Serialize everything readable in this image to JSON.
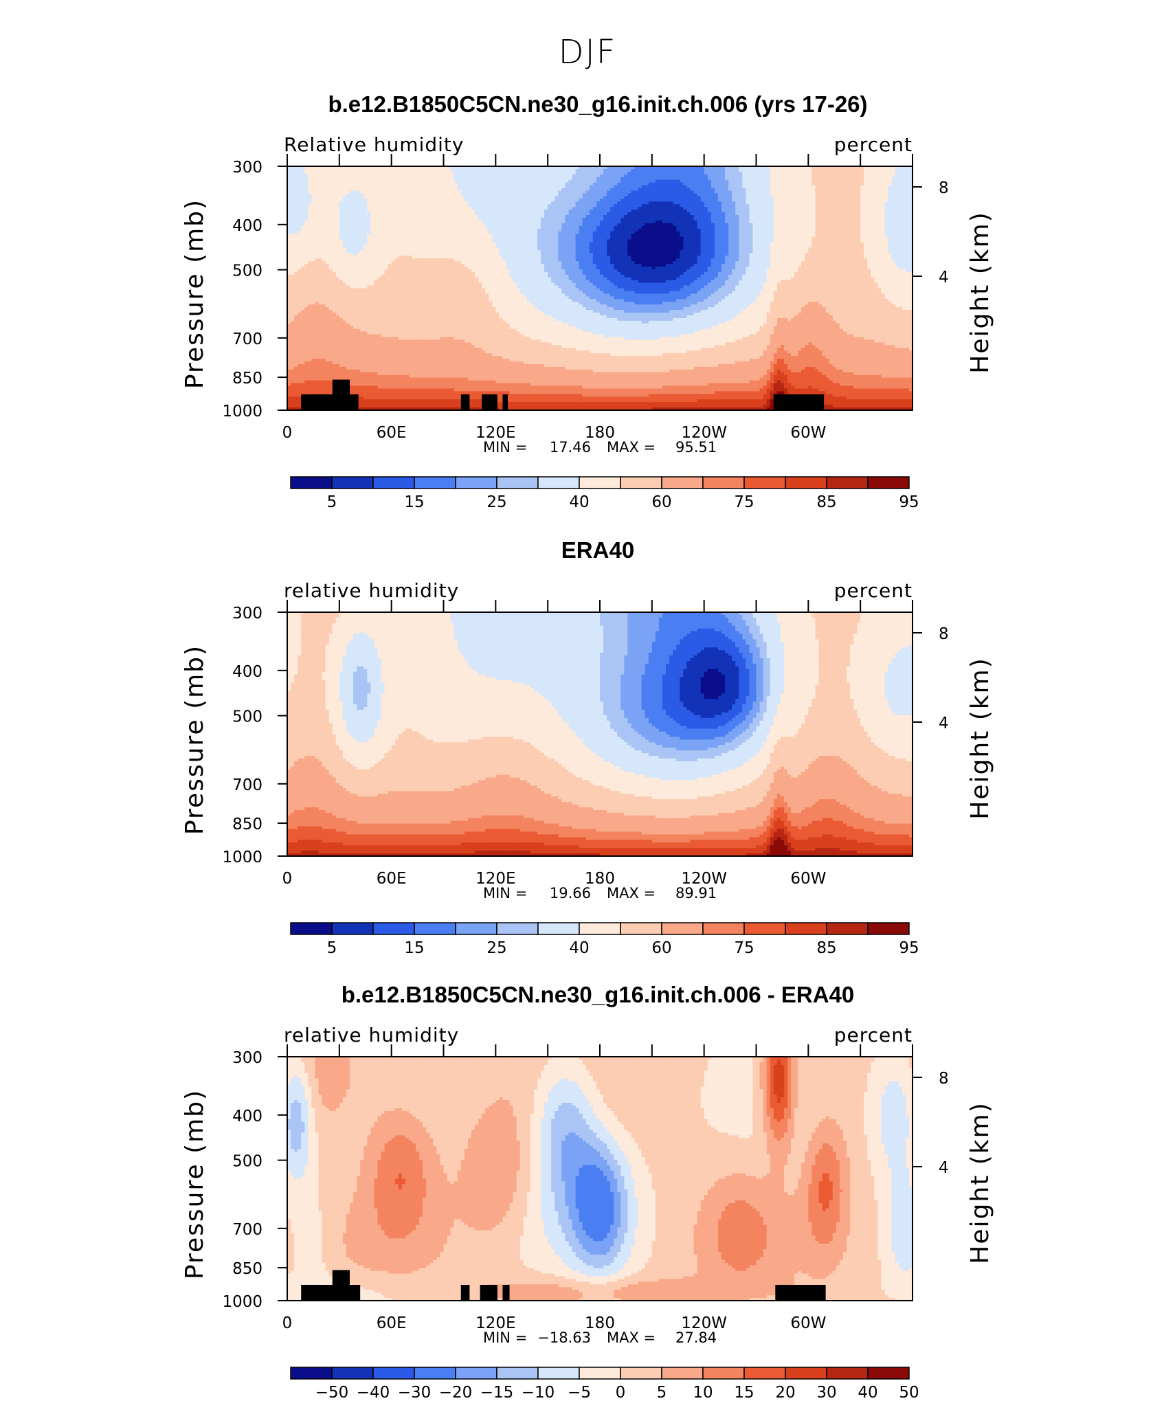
{
  "figure_title": "DJF",
  "chart_data": [
    {
      "type": "heatmap",
      "plot_kind": "filled contour (longitude-pressure cross section)",
      "title": "b.e12.B1850C5CN.ne30_g16.init.ch.006 (yrs 17-26)",
      "left_subtitle": "Relative humidity",
      "right_subtitle": "percent",
      "ylabel": "Pressure (mb)",
      "y2label": "Height (km)",
      "xticks": [
        "0",
        "60E",
        "120E",
        "180",
        "120W",
        "60W"
      ],
      "yticks": [
        "300",
        "400",
        "500",
        "700",
        "850",
        "1000"
      ],
      "y2ticks": [
        "8",
        "4"
      ],
      "stats": {
        "min_label": "MIN =",
        "min": "17.46",
        "max_label": "MAX =",
        "max": "95.51"
      },
      "colorbar_labels": [
        "5",
        "15",
        "25",
        "40",
        "60",
        "75",
        "85",
        "95"
      ],
      "palette": [
        "#0a0e8a",
        "#1233b8",
        "#2a5ae6",
        "#4a7ef2",
        "#7aa2f5",
        "#a9c4f5",
        "#d6e6fb",
        "#fdeadb",
        "#fccdb2",
        "#f9a98a",
        "#f4845f",
        "#ea5b34",
        "#d9401d",
        "#b62612",
        "#8a0a07"
      ],
      "fields": [
        {
          "lon": 5,
          "p": 350,
          "v": -14,
          "r": 14
        },
        {
          "lon": 38,
          "p": 400,
          "v": -18,
          "r": 16
        },
        {
          "lon": 205,
          "p": 450,
          "v": -24,
          "r": 60
        },
        {
          "lon": 205,
          "p": 620,
          "v": -10,
          "r": 70
        },
        {
          "lon": 355,
          "p": 400,
          "v": -14,
          "r": 15
        },
        {
          "lon": 102,
          "p": 550,
          "v": 10,
          "r": 26
        },
        {
          "lon": 300,
          "p": 700,
          "v": 10,
          "r": 14
        },
        {
          "lon": 15,
          "p": 650,
          "v": 6,
          "r": 20
        },
        {
          "lon": 235,
          "p": 720,
          "v": 5,
          "r": 40
        }
      ],
      "topography": [
        {
          "lon_from": 8,
          "lon_to": 30,
          "p_top": 925
        },
        {
          "lon_from": 26,
          "lon_to": 36,
          "p_top": 860
        },
        {
          "lon_from": 34,
          "lon_to": 41,
          "p_top": 925
        },
        {
          "lon_from": 100,
          "lon_to": 105,
          "p_top": 925
        },
        {
          "lon_from": 112,
          "lon_to": 121,
          "p_top": 925
        },
        {
          "lon_from": 124,
          "lon_to": 127,
          "p_top": 925
        },
        {
          "lon_from": 280,
          "lon_to": 309,
          "p_top": 925
        }
      ]
    },
    {
      "type": "heatmap",
      "plot_kind": "filled contour (longitude-pressure cross section)",
      "title": "ERA40",
      "left_subtitle": "relative humidity",
      "right_subtitle": "percent",
      "ylabel": "Pressure (mb)",
      "y2label": "Height (km)",
      "xticks": [
        "0",
        "60E",
        "120E",
        "180",
        "120W",
        "60W"
      ],
      "yticks": [
        "300",
        "400",
        "500",
        "700",
        "850",
        "1000"
      ],
      "y2ticks": [
        "8",
        "4"
      ],
      "stats": {
        "min_label": "MIN =",
        "min": "19.66",
        "max_label": "MAX =",
        "max": "89.91"
      },
      "colorbar_labels": [
        "5",
        "15",
        "25",
        "40",
        "60",
        "75",
        "85",
        "95"
      ],
      "palette": [
        "#0a0e8a",
        "#1233b8",
        "#2a5ae6",
        "#4a7ef2",
        "#7aa2f5",
        "#a9c4f5",
        "#d6e6fb",
        "#fdeadb",
        "#fccdb2",
        "#f9a98a",
        "#f4845f",
        "#ea5b34",
        "#d9401d",
        "#b62612",
        "#8a0a07"
      ],
      "fields": [
        {
          "lon": 42,
          "p": 420,
          "v": -22,
          "r": 14
        },
        {
          "lon": 42,
          "p": 560,
          "v": -8,
          "r": 18
        },
        {
          "lon": 255,
          "p": 430,
          "v": -24,
          "r": 30
        },
        {
          "lon": 215,
          "p": 520,
          "v": -12,
          "r": 45
        },
        {
          "lon": 350,
          "p": 450,
          "v": -10,
          "r": 22
        },
        {
          "lon": 125,
          "p": 680,
          "v": 8,
          "r": 30
        },
        {
          "lon": 310,
          "p": 740,
          "v": 6,
          "r": 20
        },
        {
          "lon": 12,
          "p": 680,
          "v": 5,
          "r": 20
        }
      ],
      "topography": []
    },
    {
      "type": "heatmap",
      "plot_kind": "filled contour (longitude-pressure cross section)",
      "title": "b.e12.B1850C5CN.ne30_g16.init.ch.006 - ERA40",
      "left_subtitle": "relative humidity",
      "right_subtitle": "percent",
      "ylabel": "Pressure (mb)",
      "y2label": "Height (km)",
      "xticks": [
        "0",
        "60E",
        "120E",
        "180",
        "120W",
        "60W"
      ],
      "yticks": [
        "300",
        "400",
        "500",
        "700",
        "850",
        "1000"
      ],
      "y2ticks": [
        "8",
        "4"
      ],
      "stats": {
        "min_label": "MIN =",
        "min": "−18.63",
        "max_label": "MAX =",
        "max": "27.84"
      },
      "colorbar_labels": [
        "−50",
        "−40",
        "−30",
        "−20",
        "−15",
        "−10",
        "−5",
        "0",
        "5",
        "10",
        "15",
        "20",
        "30",
        "40",
        "50"
      ],
      "palette": [
        "#0a0e8a",
        "#1233b8",
        "#2a5ae6",
        "#4a7ef2",
        "#7aa2f5",
        "#a9c4f5",
        "#d6e6fb",
        "#fdeadb",
        "#fccdb2",
        "#f9a98a",
        "#f4845f",
        "#ea5b34",
        "#d9401d",
        "#b62612",
        "#8a0a07"
      ],
      "fields": [
        {
          "lon": 5,
          "p": 400,
          "v": -18,
          "r": 10
        },
        {
          "lon": 160,
          "p": 410,
          "v": -15,
          "r": 18
        },
        {
          "lon": 180,
          "p": 640,
          "v": -18,
          "r": 16
        },
        {
          "lon": 170,
          "p": 560,
          "v": -10,
          "r": 30
        },
        {
          "lon": 350,
          "p": 400,
          "v": -12,
          "r": 14
        },
        {
          "lon": 355,
          "p": 700,
          "v": -8,
          "r": 10
        },
        {
          "lon": 15,
          "p": 780,
          "v": -5,
          "r": 12
        },
        {
          "lon": 65,
          "p": 520,
          "v": 14,
          "r": 20
        },
        {
          "lon": 283,
          "p": 340,
          "v": 24,
          "r": 9
        },
        {
          "lon": 120,
          "p": 540,
          "v": 8,
          "r": 20
        },
        {
          "lon": 310,
          "p": 560,
          "v": 14,
          "r": 12
        },
        {
          "lon": 260,
          "p": 700,
          "v": 8,
          "r": 20
        },
        {
          "lon": 20,
          "p": 330,
          "v": 8,
          "r": 30
        }
      ],
      "topography": [
        {
          "lon_from": 8,
          "lon_to": 30,
          "p_top": 925
        },
        {
          "lon_from": 26,
          "lon_to": 36,
          "p_top": 860
        },
        {
          "lon_from": 34,
          "lon_to": 42,
          "p_top": 925
        },
        {
          "lon_from": 100,
          "lon_to": 105,
          "p_top": 925
        },
        {
          "lon_from": 111,
          "lon_to": 121,
          "p_top": 925
        },
        {
          "lon_from": 124,
          "lon_to": 128,
          "p_top": 925
        },
        {
          "lon_from": 281,
          "lon_to": 310,
          "p_top": 925
        }
      ]
    }
  ]
}
